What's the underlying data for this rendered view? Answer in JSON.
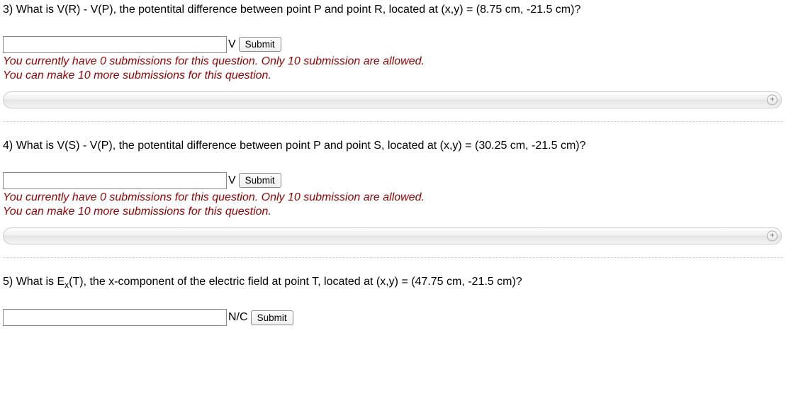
{
  "questions": [
    {
      "number": "3)",
      "text": "What is V(R) - V(P), the potentital difference between point P and point R, located at (x,y) = (8.75 cm, -21.5 cm)?",
      "unit": "V",
      "submit": "Submit",
      "info_line1": "You currently have 0 submissions for this question. Only 10 submission are allowed.",
      "info_line2": "You can make 10 more submissions for this question.",
      "show_expand": true
    },
    {
      "number": "4)",
      "text": "What is V(S) - V(P), the potentital difference between point P and point S, located at (x,y) = (30.25 cm, -21.5 cm)?",
      "unit": "V",
      "submit": "Submit",
      "info_line1": "You currently have 0 submissions for this question. Only 10 submission are allowed.",
      "info_line2": "You can make 10 more submissions for this question.",
      "show_expand": true
    },
    {
      "number": "5)",
      "text_html": "What is E<sub>x</sub>(T), the x-component of the electric field at point T, located at (x,y) = (47.75 cm, -21.5 cm)?",
      "unit": "N/C",
      "submit": "Submit",
      "show_expand": false
    }
  ]
}
